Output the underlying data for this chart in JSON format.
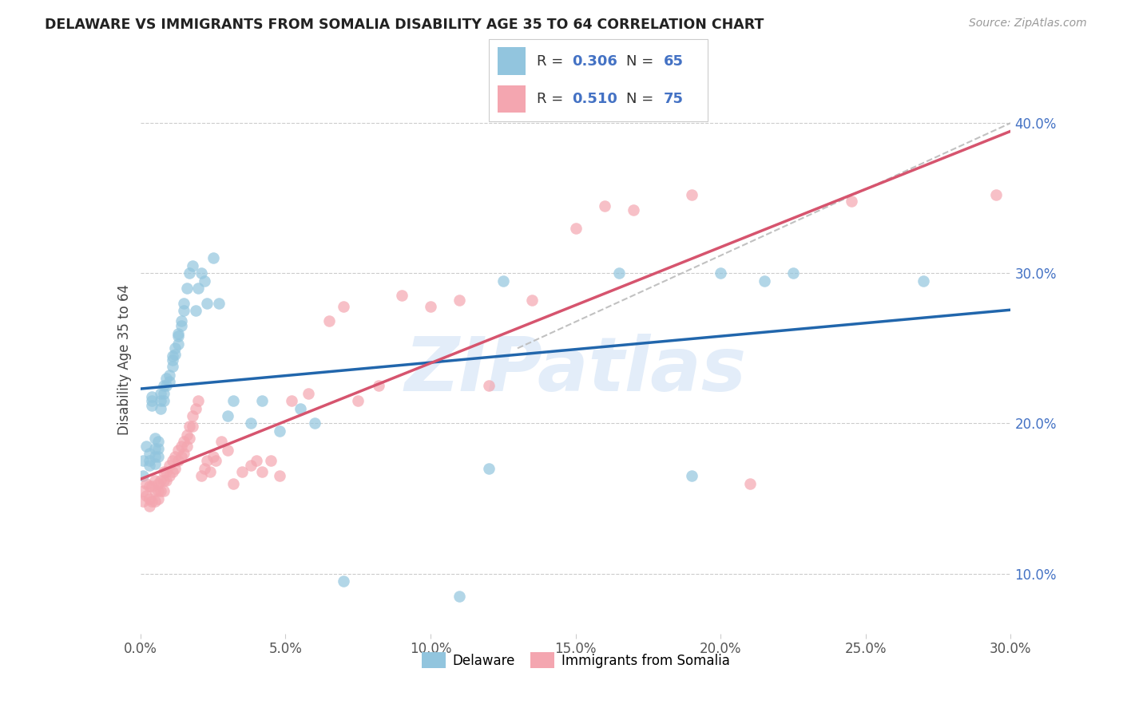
{
  "title": "DELAWARE VS IMMIGRANTS FROM SOMALIA DISABILITY AGE 35 TO 64 CORRELATION CHART",
  "source": "Source: ZipAtlas.com",
  "ylabel": "Disability Age 35 to 64",
  "xlim": [
    0.0,
    0.3
  ],
  "ylim": [
    0.06,
    0.425
  ],
  "xticks": [
    0.0,
    0.05,
    0.1,
    0.15,
    0.2,
    0.25,
    0.3
  ],
  "yticks": [
    0.1,
    0.2,
    0.3,
    0.4
  ],
  "delaware_color": "#92c5de",
  "somalia_color": "#f4a6b0",
  "delaware_line_color": "#2166ac",
  "somalia_line_color": "#d6546e",
  "dashed_line_color": "#bbbbbb",
  "watermark_text": "ZIPatlas",
  "del_R": "0.306",
  "del_N": "65",
  "som_R": "0.510",
  "som_N": "75",
  "delaware_x": [
    0.001,
    0.001,
    0.002,
    0.003,
    0.003,
    0.003,
    0.004,
    0.004,
    0.004,
    0.005,
    0.005,
    0.005,
    0.005,
    0.006,
    0.006,
    0.006,
    0.007,
    0.007,
    0.007,
    0.008,
    0.008,
    0.008,
    0.009,
    0.009,
    0.01,
    0.01,
    0.011,
    0.011,
    0.011,
    0.012,
    0.012,
    0.013,
    0.013,
    0.013,
    0.014,
    0.014,
    0.015,
    0.015,
    0.016,
    0.017,
    0.018,
    0.019,
    0.02,
    0.021,
    0.022,
    0.023,
    0.025,
    0.027,
    0.03,
    0.032,
    0.038,
    0.042,
    0.048,
    0.055,
    0.06,
    0.07,
    0.11,
    0.12,
    0.125,
    0.165,
    0.19,
    0.2,
    0.215,
    0.225,
    0.27
  ],
  "delaware_y": [
    0.175,
    0.165,
    0.185,
    0.175,
    0.172,
    0.18,
    0.218,
    0.215,
    0.212,
    0.19,
    0.183,
    0.178,
    0.173,
    0.188,
    0.183,
    0.178,
    0.22,
    0.215,
    0.21,
    0.225,
    0.22,
    0.215,
    0.23,
    0.225,
    0.232,
    0.228,
    0.245,
    0.242,
    0.238,
    0.25,
    0.246,
    0.26,
    0.258,
    0.253,
    0.268,
    0.265,
    0.28,
    0.275,
    0.29,
    0.3,
    0.305,
    0.275,
    0.29,
    0.3,
    0.295,
    0.28,
    0.31,
    0.28,
    0.205,
    0.215,
    0.2,
    0.215,
    0.195,
    0.21,
    0.2,
    0.095,
    0.085,
    0.17,
    0.295,
    0.3,
    0.165,
    0.3,
    0.295,
    0.3,
    0.295
  ],
  "somalia_x": [
    0.001,
    0.001,
    0.002,
    0.002,
    0.003,
    0.003,
    0.003,
    0.004,
    0.004,
    0.005,
    0.005,
    0.005,
    0.006,
    0.006,
    0.006,
    0.007,
    0.007,
    0.008,
    0.008,
    0.008,
    0.009,
    0.009,
    0.01,
    0.01,
    0.011,
    0.011,
    0.012,
    0.012,
    0.013,
    0.013,
    0.014,
    0.014,
    0.015,
    0.015,
    0.016,
    0.016,
    0.017,
    0.017,
    0.018,
    0.018,
    0.019,
    0.02,
    0.021,
    0.022,
    0.023,
    0.024,
    0.025,
    0.026,
    0.028,
    0.03,
    0.032,
    0.035,
    0.038,
    0.04,
    0.042,
    0.045,
    0.048,
    0.052,
    0.058,
    0.065,
    0.07,
    0.075,
    0.082,
    0.09,
    0.1,
    0.11,
    0.12,
    0.135,
    0.15,
    0.16,
    0.17,
    0.19,
    0.21,
    0.245,
    0.295
  ],
  "somalia_y": [
    0.155,
    0.148,
    0.16,
    0.152,
    0.158,
    0.15,
    0.145,
    0.158,
    0.148,
    0.162,
    0.155,
    0.148,
    0.16,
    0.155,
    0.15,
    0.162,
    0.155,
    0.168,
    0.162,
    0.155,
    0.168,
    0.162,
    0.172,
    0.165,
    0.175,
    0.168,
    0.178,
    0.17,
    0.182,
    0.175,
    0.185,
    0.178,
    0.188,
    0.18,
    0.192,
    0.185,
    0.198,
    0.19,
    0.205,
    0.198,
    0.21,
    0.215,
    0.165,
    0.17,
    0.175,
    0.168,
    0.178,
    0.175,
    0.188,
    0.182,
    0.16,
    0.168,
    0.172,
    0.175,
    0.168,
    0.175,
    0.165,
    0.215,
    0.22,
    0.268,
    0.278,
    0.215,
    0.225,
    0.285,
    0.278,
    0.282,
    0.225,
    0.282,
    0.33,
    0.345,
    0.342,
    0.352,
    0.16,
    0.348,
    0.352
  ]
}
